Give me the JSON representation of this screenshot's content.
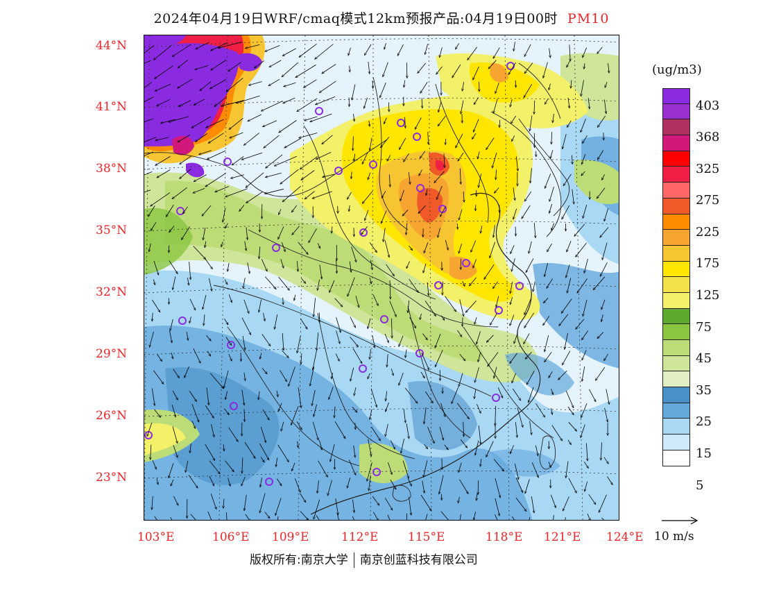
{
  "header": {
    "title": "2024年04月19日WRF/cmaq模式12km预报产品:04月19日00时",
    "pollutant": "PM10"
  },
  "map": {
    "lat_labels": [
      "44°N",
      "41°N",
      "38°N",
      "35°N",
      "32°N",
      "29°N",
      "26°N",
      "23°N"
    ],
    "lon_labels": [
      "103°E",
      "106°E",
      "109°E",
      "112°E",
      "115°E",
      "118°E",
      "121°E",
      "124°E"
    ]
  },
  "legend": {
    "unit": "(ug/m3)",
    "levels": [
      "403",
      "368",
      "325",
      "275",
      "225",
      "175",
      "125",
      "75",
      "45",
      "35",
      "25",
      "15",
      "5"
    ],
    "colors": [
      "#8a2be2",
      "#9b30d0",
      "#b03060",
      "#d0197a",
      "#ff0000",
      "#f01f45",
      "#ff6666",
      "#f05a28",
      "#ff8c00",
      "#f7a531",
      "#f7c531",
      "#ffe600",
      "#f5e24b",
      "#f3f06a",
      "#5ea830",
      "#8ac640",
      "#bcdc78",
      "#cfe59a",
      "#e1edc2",
      "#4a90c8",
      "#64a8dc",
      "#a9d8f4",
      "#cde9fa",
      "#ffffff"
    ]
  },
  "wind_reference": {
    "label": "10 m/s"
  },
  "footer": {
    "copyright": "版权所有:南京大学",
    "company": "南京创蓝科技有限公司"
  }
}
